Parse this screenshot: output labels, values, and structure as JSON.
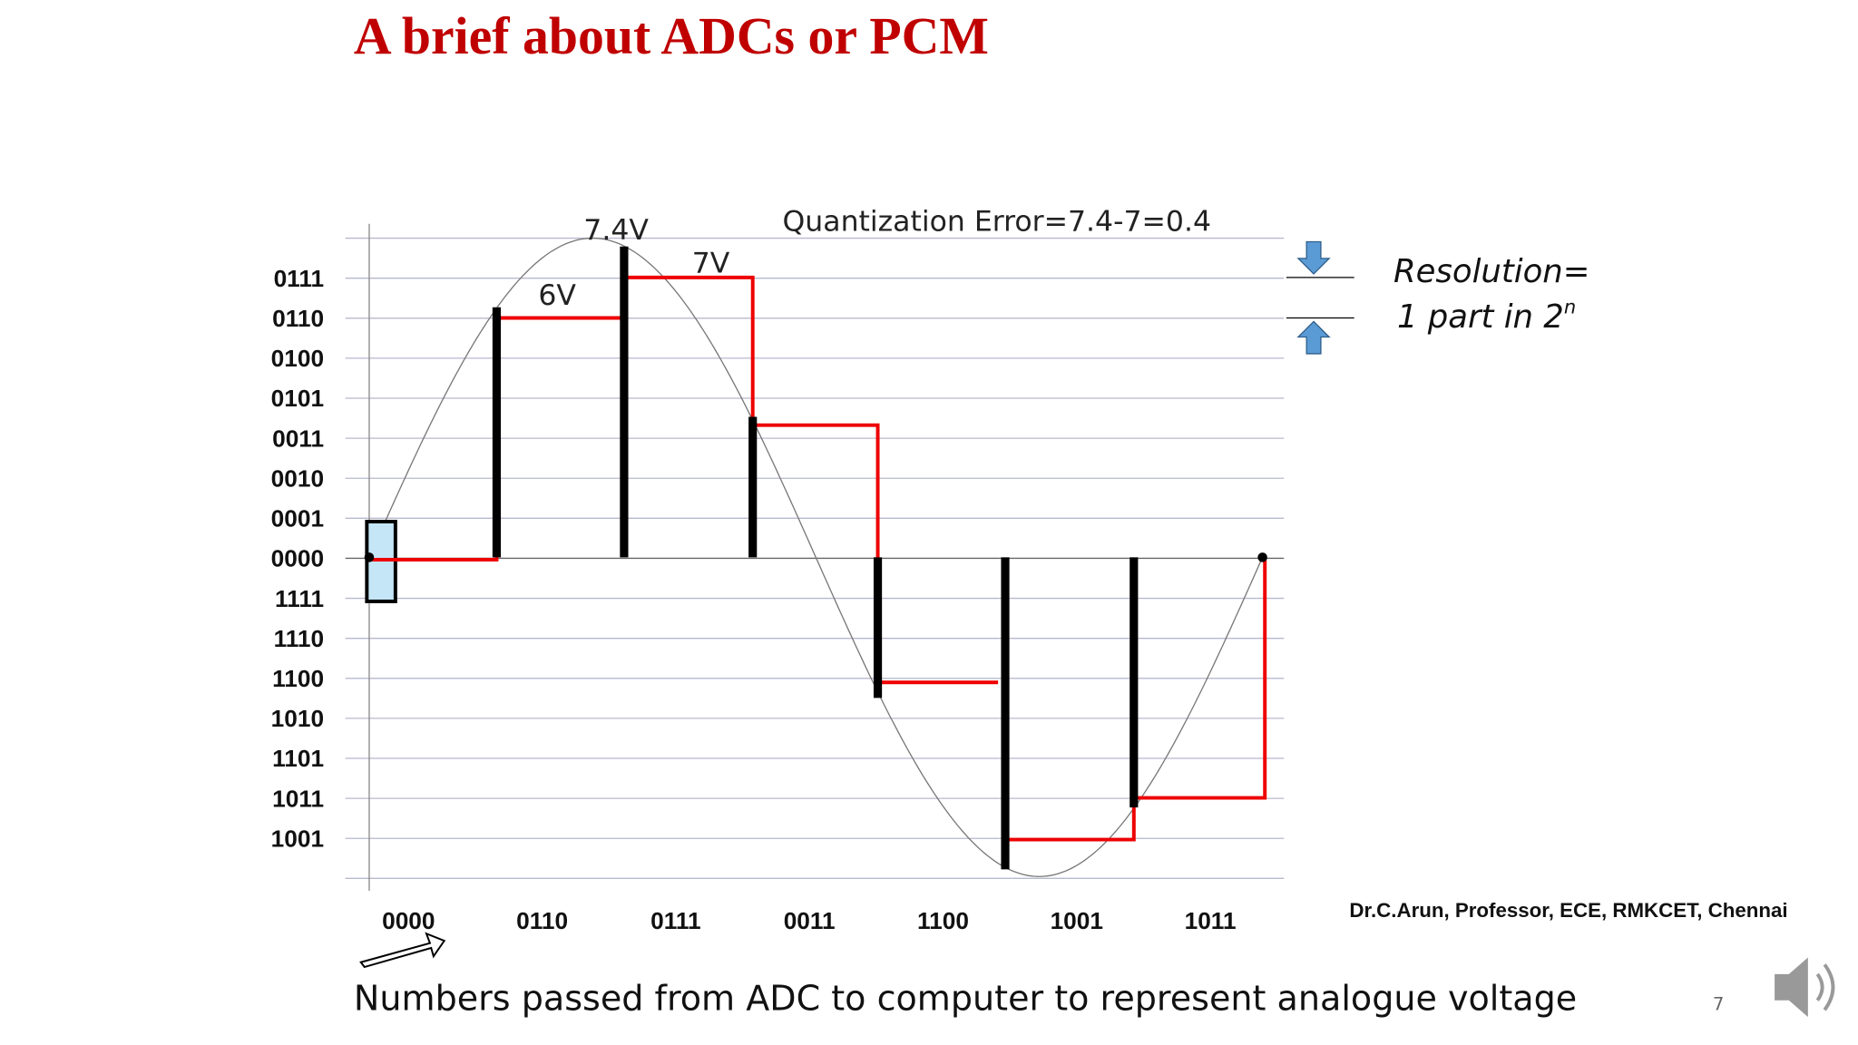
{
  "header": {
    "title": "A brief about ADCs or PCM"
  },
  "diagram": {
    "y_labels": [
      "0111",
      "0110",
      "0100",
      "0101",
      "0011",
      "0010",
      "0001",
      "0000",
      "1111",
      "1110",
      "1100",
      "1010",
      "1101",
      "1011",
      "1001"
    ],
    "x_labels": [
      "0000",
      "0110",
      "0111",
      "0011",
      "1100",
      "1001",
      "1011"
    ],
    "annotations": {
      "peak": "7.4V",
      "six": "6V",
      "seven": "7V",
      "error": "Quantization Error=7.4-7=0.4"
    },
    "resolution": {
      "line1": "Resolution=",
      "line2": "1 part in 2",
      "exponent": "n"
    }
  },
  "footer": {
    "credit": "Dr.C.Arun, Professor, ECE, RMKCET, Chennai",
    "caption": "Numbers passed from ADC to computer to represent analogue voltage",
    "page": "7"
  }
}
